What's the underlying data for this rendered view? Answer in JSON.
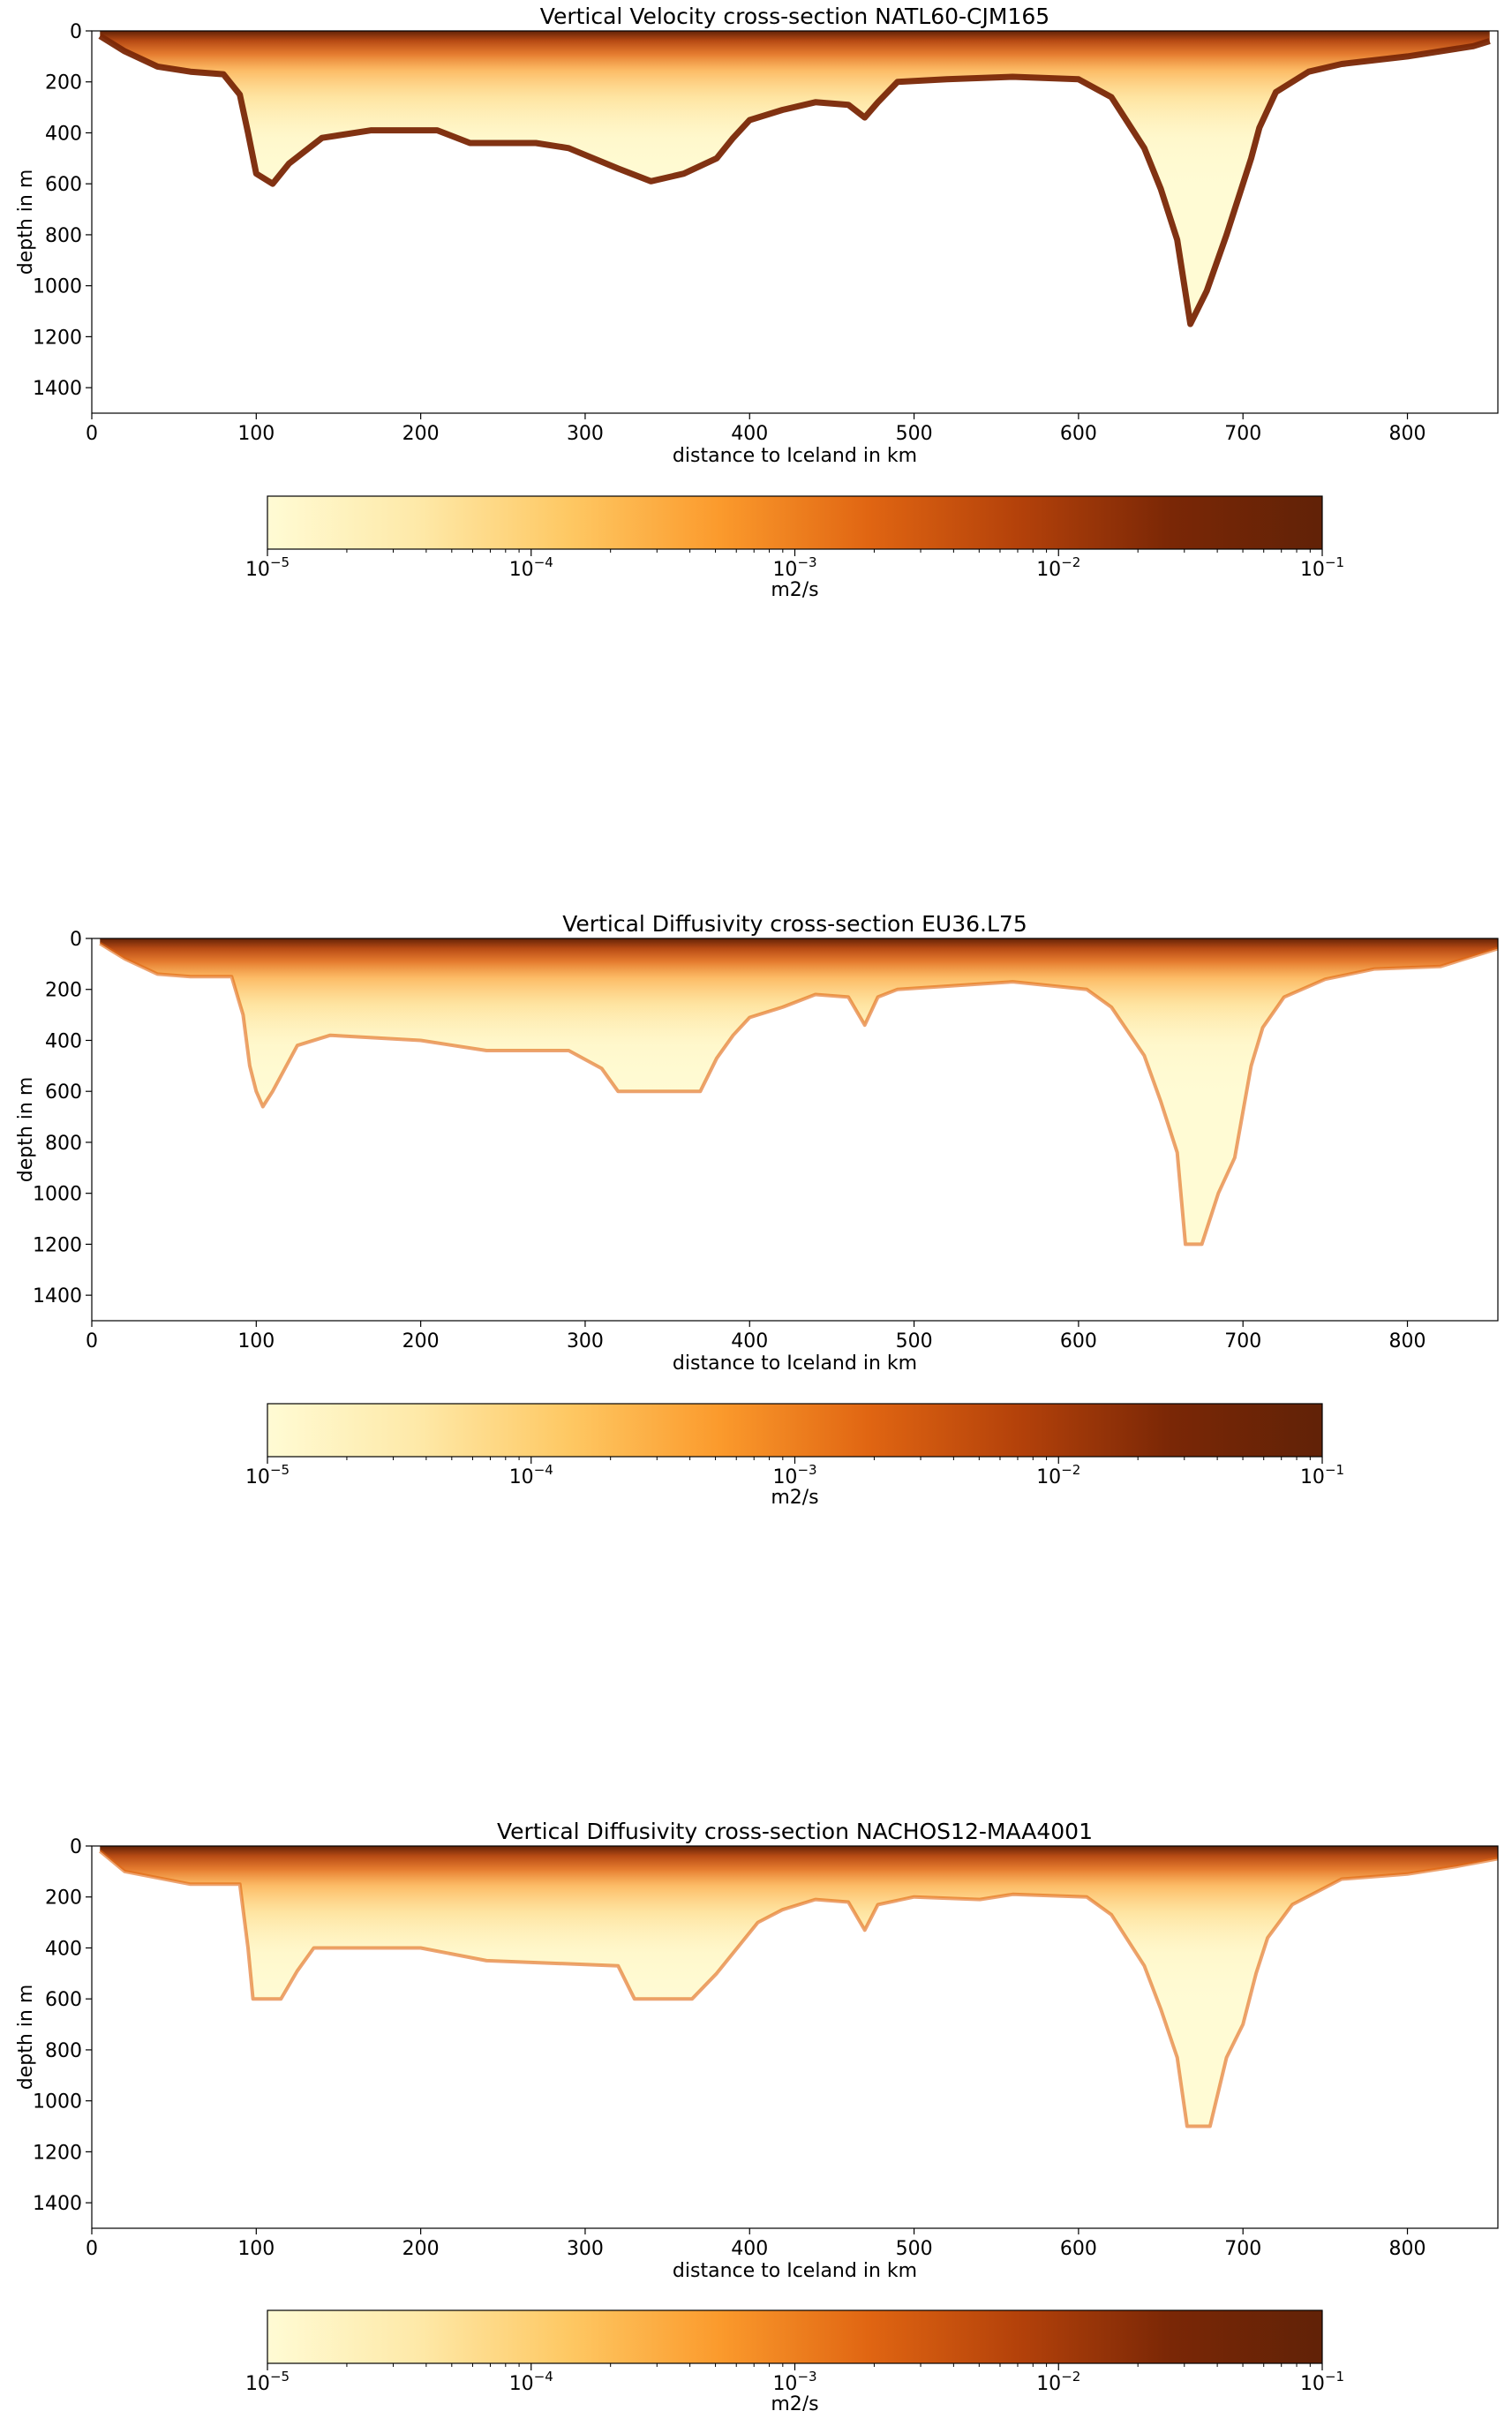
{
  "colorbar_label": "m2/s",
  "colorbar_ticks": [
    {
      "base": "10",
      "exp": "−5"
    },
    {
      "base": "10",
      "exp": "−4"
    },
    {
      "base": "10",
      "exp": "−3"
    },
    {
      "base": "10",
      "exp": "−2"
    },
    {
      "base": "10",
      "exp": "−1"
    }
  ],
  "colormap": [
    "#fffbd4",
    "#fee9a8",
    "#fec863",
    "#fb9a2c",
    "#e06512",
    "#b3410a",
    "#7a2706",
    "#612207"
  ],
  "chart_data": [
    {
      "type": "heatmap",
      "title": "Vertical Velocity cross-section NATL60-CJM165",
      "xlabel": "distance to Iceland in km",
      "ylabel": "depth in m",
      "xlim": [
        0,
        855
      ],
      "ylim": [
        1500,
        0
      ],
      "xticks": [
        0,
        100,
        200,
        300,
        400,
        500,
        600,
        700,
        800
      ],
      "yticks": [
        0,
        200,
        400,
        600,
        800,
        1000,
        1200,
        1400
      ],
      "colorbar_range": [
        1e-05,
        0.1
      ],
      "colorbar_scale": "log",
      "bathymetry": [
        [
          5,
          20
        ],
        [
          20,
          80
        ],
        [
          40,
          140
        ],
        [
          60,
          160
        ],
        [
          80,
          170
        ],
        [
          90,
          250
        ],
        [
          95,
          400
        ],
        [
          100,
          560
        ],
        [
          110,
          600
        ],
        [
          120,
          520
        ],
        [
          140,
          420
        ],
        [
          170,
          390
        ],
        [
          210,
          390
        ],
        [
          230,
          440
        ],
        [
          270,
          440
        ],
        [
          290,
          460
        ],
        [
          320,
          540
        ],
        [
          340,
          590
        ],
        [
          360,
          560
        ],
        [
          380,
          500
        ],
        [
          390,
          420
        ],
        [
          400,
          350
        ],
        [
          420,
          310
        ],
        [
          440,
          280
        ],
        [
          460,
          290
        ],
        [
          470,
          340
        ],
        [
          478,
          280
        ],
        [
          490,
          200
        ],
        [
          520,
          190
        ],
        [
          560,
          180
        ],
        [
          600,
          190
        ],
        [
          620,
          260
        ],
        [
          640,
          460
        ],
        [
          650,
          620
        ],
        [
          660,
          820
        ],
        [
          668,
          1150
        ],
        [
          678,
          1020
        ],
        [
          690,
          800
        ],
        [
          700,
          600
        ],
        [
          705,
          500
        ],
        [
          710,
          380
        ],
        [
          720,
          240
        ],
        [
          740,
          160
        ],
        [
          760,
          130
        ],
        [
          800,
          100
        ],
        [
          840,
          60
        ],
        [
          850,
          40
        ]
      ]
    },
    {
      "type": "heatmap",
      "title": "Vertical Diffusivity cross-section EU36.L75",
      "xlabel": "distance to Iceland in km",
      "ylabel": "depth in m",
      "xlim": [
        0,
        855
      ],
      "ylim": [
        1500,
        0
      ],
      "xticks": [
        0,
        100,
        200,
        300,
        400,
        500,
        600,
        700,
        800
      ],
      "yticks": [
        0,
        200,
        400,
        600,
        800,
        1000,
        1200,
        1400
      ],
      "colorbar_range": [
        1e-05,
        0.1
      ],
      "colorbar_scale": "log",
      "bathymetry": [
        [
          5,
          20
        ],
        [
          20,
          80
        ],
        [
          40,
          140
        ],
        [
          60,
          150
        ],
        [
          85,
          150
        ],
        [
          92,
          300
        ],
        [
          96,
          500
        ],
        [
          100,
          600
        ],
        [
          104,
          660
        ],
        [
          110,
          600
        ],
        [
          125,
          420
        ],
        [
          145,
          380
        ],
        [
          200,
          400
        ],
        [
          240,
          440
        ],
        [
          290,
          440
        ],
        [
          310,
          510
        ],
        [
          320,
          600
        ],
        [
          370,
          600
        ],
        [
          380,
          470
        ],
        [
          390,
          380
        ],
        [
          400,
          310
        ],
        [
          420,
          270
        ],
        [
          440,
          220
        ],
        [
          460,
          230
        ],
        [
          470,
          340
        ],
        [
          478,
          230
        ],
        [
          490,
          200
        ],
        [
          560,
          170
        ],
        [
          605,
          200
        ],
        [
          620,
          270
        ],
        [
          640,
          460
        ],
        [
          650,
          640
        ],
        [
          660,
          840
        ],
        [
          665,
          1200
        ],
        [
          675,
          1200
        ],
        [
          685,
          1000
        ],
        [
          695,
          860
        ],
        [
          705,
          500
        ],
        [
          712,
          350
        ],
        [
          725,
          230
        ],
        [
          750,
          160
        ],
        [
          780,
          120
        ],
        [
          820,
          110
        ],
        [
          845,
          60
        ],
        [
          855,
          40
        ]
      ]
    },
    {
      "type": "heatmap",
      "title": "Vertical Diffusivity cross-section NACHOS12-MAA4001",
      "xlabel": "distance to Iceland in km",
      "ylabel": "depth in m",
      "xlim": [
        0,
        855
      ],
      "ylim": [
        1500,
        0
      ],
      "xticks": [
        0,
        100,
        200,
        300,
        400,
        500,
        600,
        700,
        800
      ],
      "yticks": [
        0,
        200,
        400,
        600,
        800,
        1000,
        1200,
        1400
      ],
      "colorbar_range": [
        1e-05,
        0.1
      ],
      "colorbar_scale": "log",
      "bathymetry": [
        [
          5,
          20
        ],
        [
          20,
          100
        ],
        [
          60,
          150
        ],
        [
          90,
          150
        ],
        [
          95,
          400
        ],
        [
          98,
          600
        ],
        [
          115,
          600
        ],
        [
          125,
          490
        ],
        [
          135,
          400
        ],
        [
          200,
          400
        ],
        [
          240,
          450
        ],
        [
          320,
          470
        ],
        [
          330,
          600
        ],
        [
          365,
          600
        ],
        [
          380,
          500
        ],
        [
          395,
          380
        ],
        [
          405,
          300
        ],
        [
          420,
          250
        ],
        [
          440,
          210
        ],
        [
          460,
          220
        ],
        [
          470,
          330
        ],
        [
          478,
          230
        ],
        [
          500,
          200
        ],
        [
          540,
          210
        ],
        [
          560,
          190
        ],
        [
          605,
          200
        ],
        [
          620,
          270
        ],
        [
          640,
          470
        ],
        [
          650,
          640
        ],
        [
          660,
          830
        ],
        [
          666,
          1100
        ],
        [
          680,
          1100
        ],
        [
          690,
          830
        ],
        [
          700,
          700
        ],
        [
          708,
          500
        ],
        [
          715,
          360
        ],
        [
          730,
          230
        ],
        [
          760,
          130
        ],
        [
          800,
          110
        ],
        [
          830,
          80
        ],
        [
          855,
          50
        ]
      ]
    }
  ]
}
